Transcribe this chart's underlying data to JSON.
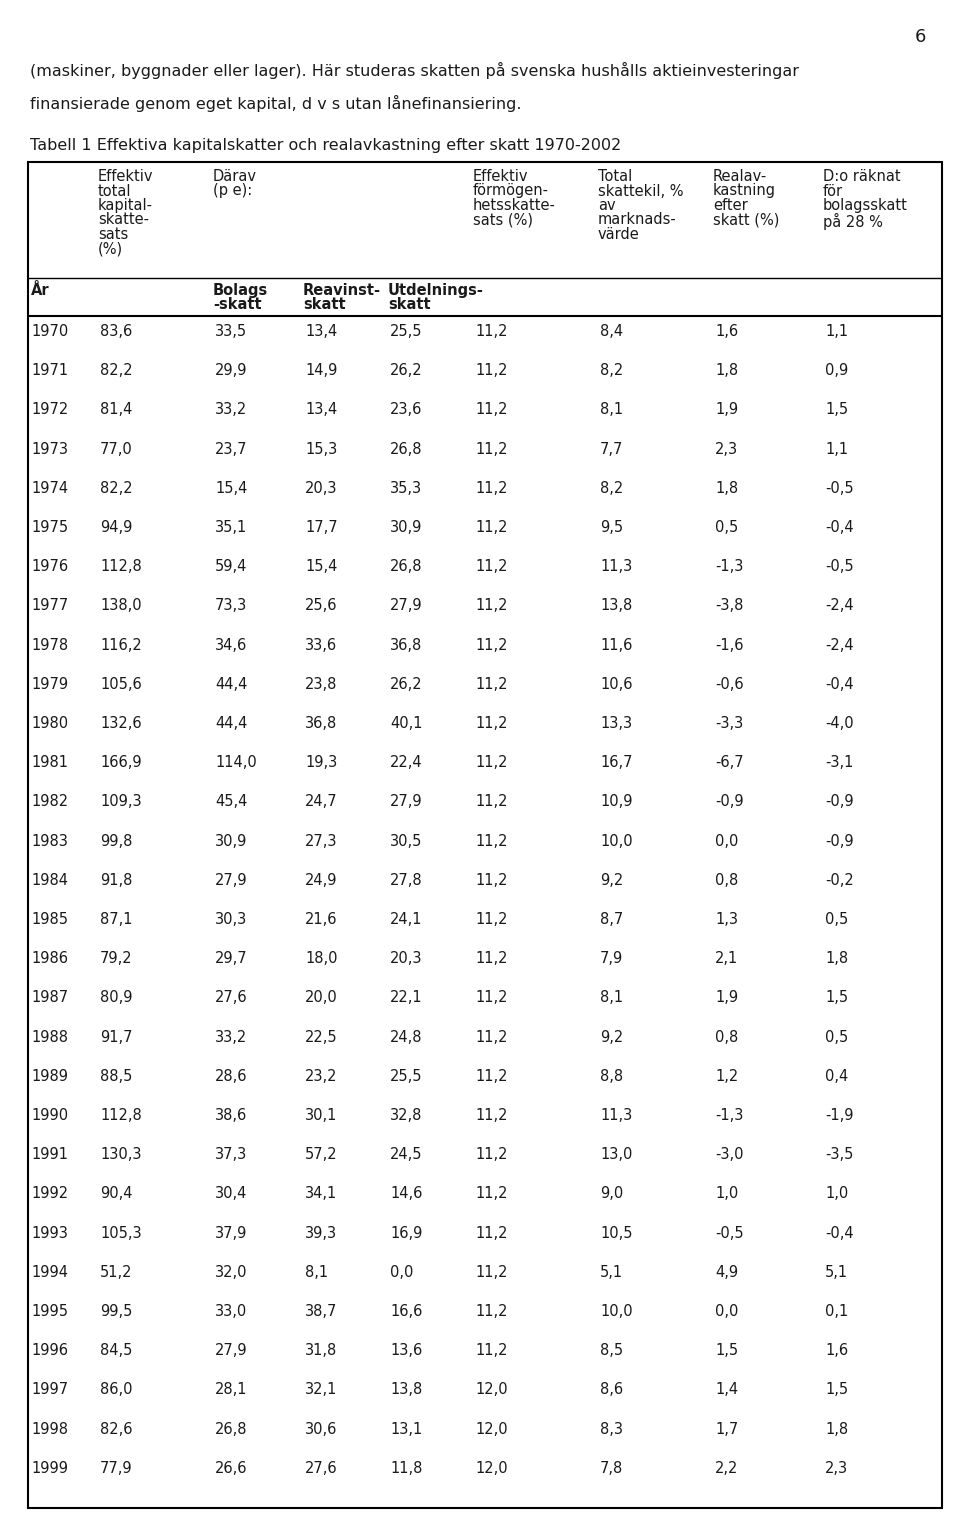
{
  "page_number": "6",
  "intro_text_line1": "(maskiner, byggnader eller lager). Här studeras skatten på svenska hushålls aktieinvesteringar",
  "intro_text_line2": "finansierade genom eget kapital, d v s utan lånefinansiering.",
  "table_title": "Tabell 1 Effektiva kapitalskatter och realavkastning efter skatt 1970-2002",
  "rows": [
    [
      "1970",
      "83,6",
      "33,5",
      "13,4",
      "25,5",
      "11,2",
      "8,4",
      "1,6",
      "1,1"
    ],
    [
      "1971",
      "82,2",
      "29,9",
      "14,9",
      "26,2",
      "11,2",
      "8,2",
      "1,8",
      "0,9"
    ],
    [
      "1972",
      "81,4",
      "33,2",
      "13,4",
      "23,6",
      "11,2",
      "8,1",
      "1,9",
      "1,5"
    ],
    [
      "1973",
      "77,0",
      "23,7",
      "15,3",
      "26,8",
      "11,2",
      "7,7",
      "2,3",
      "1,1"
    ],
    [
      "1974",
      "82,2",
      "15,4",
      "20,3",
      "35,3",
      "11,2",
      "8,2",
      "1,8",
      "-0,5"
    ],
    [
      "1975",
      "94,9",
      "35,1",
      "17,7",
      "30,9",
      "11,2",
      "9,5",
      "0,5",
      "-0,4"
    ],
    [
      "1976",
      "112,8",
      "59,4",
      "15,4",
      "26,8",
      "11,2",
      "11,3",
      "-1,3",
      "-0,5"
    ],
    [
      "1977",
      "138,0",
      "73,3",
      "25,6",
      "27,9",
      "11,2",
      "13,8",
      "-3,8",
      "-2,4"
    ],
    [
      "1978",
      "116,2",
      "34,6",
      "33,6",
      "36,8",
      "11,2",
      "11,6",
      "-1,6",
      "-2,4"
    ],
    [
      "1979",
      "105,6",
      "44,4",
      "23,8",
      "26,2",
      "11,2",
      "10,6",
      "-0,6",
      "-0,4"
    ],
    [
      "1980",
      "132,6",
      "44,4",
      "36,8",
      "40,1",
      "11,2",
      "13,3",
      "-3,3",
      "-4,0"
    ],
    [
      "1981",
      "166,9",
      "114,0",
      "19,3",
      "22,4",
      "11,2",
      "16,7",
      "-6,7",
      "-3,1"
    ],
    [
      "1982",
      "109,3",
      "45,4",
      "24,7",
      "27,9",
      "11,2",
      "10,9",
      "-0,9",
      "-0,9"
    ],
    [
      "1983",
      "99,8",
      "30,9",
      "27,3",
      "30,5",
      "11,2",
      "10,0",
      "0,0",
      "-0,9"
    ],
    [
      "1984",
      "91,8",
      "27,9",
      "24,9",
      "27,8",
      "11,2",
      "9,2",
      "0,8",
      "-0,2"
    ],
    [
      "1985",
      "87,1",
      "30,3",
      "21,6",
      "24,1",
      "11,2",
      "8,7",
      "1,3",
      "0,5"
    ],
    [
      "1986",
      "79,2",
      "29,7",
      "18,0",
      "20,3",
      "11,2",
      "7,9",
      "2,1",
      "1,8"
    ],
    [
      "1987",
      "80,9",
      "27,6",
      "20,0",
      "22,1",
      "11,2",
      "8,1",
      "1,9",
      "1,5"
    ],
    [
      "1988",
      "91,7",
      "33,2",
      "22,5",
      "24,8",
      "11,2",
      "9,2",
      "0,8",
      "0,5"
    ],
    [
      "1989",
      "88,5",
      "28,6",
      "23,2",
      "25,5",
      "11,2",
      "8,8",
      "1,2",
      "0,4"
    ],
    [
      "1990",
      "112,8",
      "38,6",
      "30,1",
      "32,8",
      "11,2",
      "11,3",
      "-1,3",
      "-1,9"
    ],
    [
      "1991",
      "130,3",
      "37,3",
      "57,2",
      "24,5",
      "11,2",
      "13,0",
      "-3,0",
      "-3,5"
    ],
    [
      "1992",
      "90,4",
      "30,4",
      "34,1",
      "14,6",
      "11,2",
      "9,0",
      "1,0",
      "1,0"
    ],
    [
      "1993",
      "105,3",
      "37,9",
      "39,3",
      "16,9",
      "11,2",
      "10,5",
      "-0,5",
      "-0,4"
    ],
    [
      "1994",
      "51,2",
      "32,0",
      "8,1",
      "0,0",
      "11,2",
      "5,1",
      "4,9",
      "5,1"
    ],
    [
      "1995",
      "99,5",
      "33,0",
      "38,7",
      "16,6",
      "11,2",
      "10,0",
      "0,0",
      "0,1"
    ],
    [
      "1996",
      "84,5",
      "27,9",
      "31,8",
      "13,6",
      "11,2",
      "8,5",
      "1,5",
      "1,6"
    ],
    [
      "1997",
      "86,0",
      "28,1",
      "32,1",
      "13,8",
      "12,0",
      "8,6",
      "1,4",
      "1,5"
    ],
    [
      "1998",
      "82,6",
      "26,8",
      "30,6",
      "13,1",
      "12,0",
      "8,3",
      "1,7",
      "1,8"
    ],
    [
      "1999",
      "77,9",
      "26,6",
      "27,6",
      "11,8",
      "12,0",
      "7,8",
      "2,2",
      "2,3"
    ]
  ],
  "background_color": "#ffffff",
  "text_color": "#1a1a1a",
  "border_color": "#000000",
  "fs_intro": 11.5,
  "fs_title": 11.5,
  "fs_header": 10.5,
  "fs_subheader": 10.5,
  "fs_body": 10.5,
  "fs_pagenum": 13
}
